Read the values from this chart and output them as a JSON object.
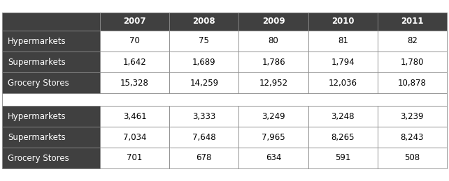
{
  "columns": [
    "",
    "2007",
    "2008",
    "2009",
    "2010",
    "2011"
  ],
  "section1": [
    [
      "Hypermarkets",
      "70",
      "75",
      "80",
      "81",
      "82"
    ],
    [
      "Supermarkets",
      "1,642",
      "1,689",
      "1,786",
      "1,794",
      "1,780"
    ],
    [
      "Grocery Stores",
      "15,328",
      "14,259",
      "12,952",
      "12,036",
      "10,878"
    ]
  ],
  "section2": [
    [
      "Hypermarkets",
      "3,461",
      "3,333",
      "3,249",
      "3,248",
      "3,239"
    ],
    [
      "Supermarkets",
      "7,034",
      "7,648",
      "7,965",
      "8,265",
      "8,243"
    ],
    [
      "Grocery Stores",
      "701",
      "678",
      "634",
      "591",
      "508"
    ]
  ],
  "header_bg": "#404040",
  "header_fg": "#ffffff",
  "row_label_bg": "#404040",
  "row_label_fg": "#ffffff",
  "data_bg": "#ffffff",
  "data_fg": "#000000",
  "separator_bg": "#ffffff",
  "border_color": "#888888",
  "fig_bg": "#ffffff",
  "header_fontsize": 8.5,
  "data_fontsize": 8.5
}
